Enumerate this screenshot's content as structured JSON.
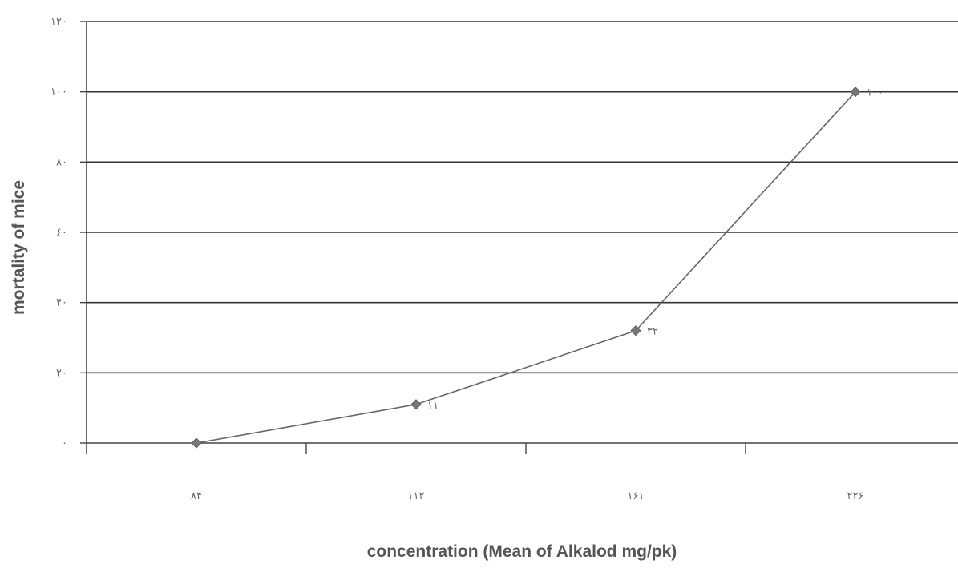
{
  "chart_data": {
    "type": "line",
    "title": "",
    "xlabel": "concentration (Mean of Alkalod mg/pk)",
    "ylabel": "mortality of mice",
    "categories": [
      "۸۴",
      "۱۱۲",
      "۱۶۱",
      "۲۲۶"
    ],
    "series": [
      {
        "values": [
          0,
          11,
          32,
          100
        ],
        "data_labels": [
          "",
          "۱۱",
          "۳۲",
          "۱۰۰"
        ],
        "color": "#666666",
        "marker": "diamond"
      }
    ],
    "ylim": [
      0,
      120
    ],
    "y_ticks": [
      0,
      20,
      40,
      60,
      80,
      100,
      120
    ],
    "y_tick_labels": [
      "۰",
      "۲۰",
      "۴۰",
      "۶۰",
      "۸۰",
      "۱۰۰",
      "۱۲۰"
    ],
    "grid": true,
    "legend": "none"
  },
  "colors": {
    "gridline": "#333333",
    "axis": "#444444",
    "line": "#666666",
    "marker": "#777777"
  }
}
